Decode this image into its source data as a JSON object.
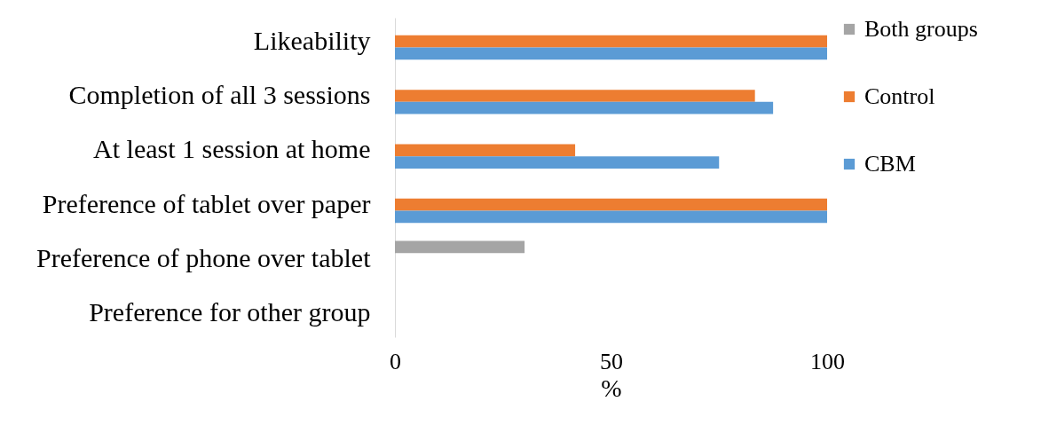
{
  "chart_data": {
    "type": "bar",
    "orientation": "horizontal",
    "xlabel": "%",
    "categories": [
      "Likeability",
      "Completion of all 3 sessions",
      "At least 1 session at home",
      "Preference of tablet over paper",
      "Preference of phone over tablet",
      "Preference for other group"
    ],
    "series": [
      {
        "name": "Both groups",
        "color": "#a5a5a5",
        "values": [
          null,
          null,
          null,
          null,
          30,
          null
        ]
      },
      {
        "name": "Control",
        "color": "#ed7d31",
        "values": [
          100,
          83.3,
          41.7,
          100,
          null,
          null
        ]
      },
      {
        "name": "CBM",
        "color": "#5b9bd5",
        "values": [
          100,
          87.5,
          75,
          100,
          null,
          null
        ]
      }
    ],
    "xlim": [
      0,
      100
    ],
    "xticks": [
      0,
      50,
      100
    ],
    "grid": false,
    "legend": "right"
  }
}
